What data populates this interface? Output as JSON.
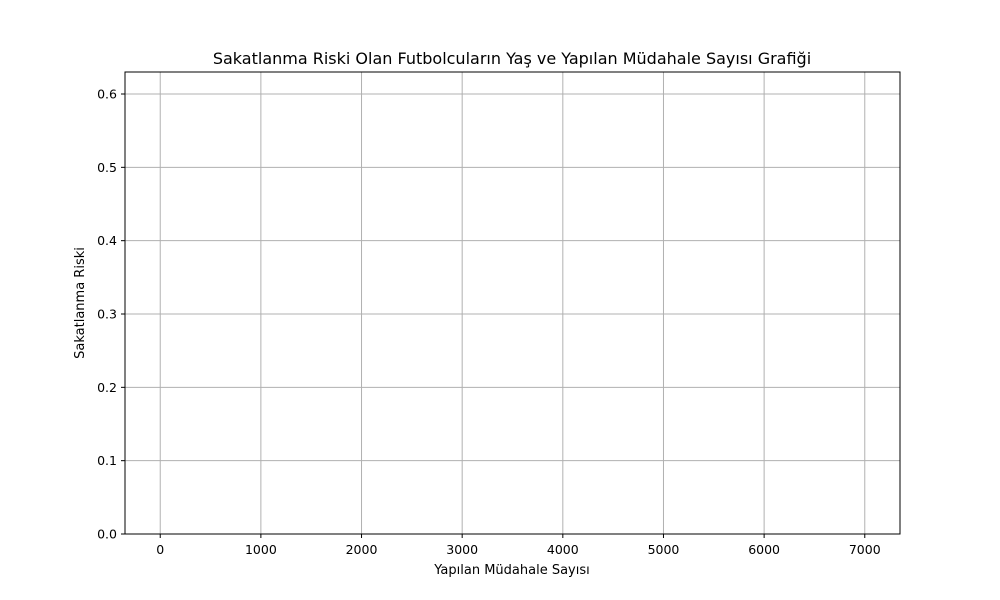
{
  "chart_data": {
    "type": "scatter",
    "title": "Sakatlanma Riski Olan Futbolcuların Yaş ve Yapılan Müdahale Sayısı Grafiği",
    "xlabel": "Yapılan Müdahale Sayısı",
    "ylabel": "Sakatlanma Riski",
    "xlim": [
      -350,
      7350
    ],
    "ylim": [
      0,
      0.63
    ],
    "x_ticks": [
      0,
      1000,
      2000,
      3000,
      4000,
      5000,
      6000,
      7000
    ],
    "x_tick_labels": [
      "0",
      "1000",
      "2000",
      "3000",
      "4000",
      "5000",
      "6000",
      "7000"
    ],
    "y_ticks": [
      0.0,
      0.1,
      0.2,
      0.3,
      0.4,
      0.5,
      0.6
    ],
    "y_tick_labels": [
      "0.0",
      "0.1",
      "0.2",
      "0.3",
      "0.4",
      "0.5",
      "0.6"
    ],
    "grid": true,
    "series": [
      {
        "x": [],
        "y": []
      }
    ]
  }
}
